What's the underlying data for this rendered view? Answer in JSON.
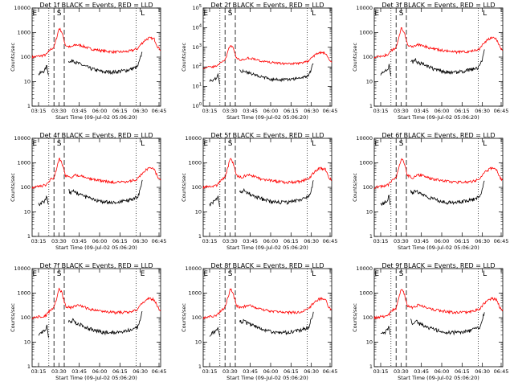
{
  "chart_data": {
    "type": "line",
    "x_tick_labels": [
      "03:15",
      "03:30",
      "03:45",
      "06:00",
      "06:15",
      "06:30",
      "06:45"
    ],
    "y_tick_labels_default": [
      "1",
      "10",
      "100",
      "1000",
      "10000"
    ],
    "y_tick_labels_exp": [
      "10^0",
      "10^1",
      "10^2",
      "10^3",
      "10^4",
      "10^5"
    ],
    "ylabel": "Counts/sec",
    "xlabel": "Start Time (09-Jul-02 05:06:20)",
    "y_scale": "log",
    "series_colors": {
      "events": "#000000",
      "lld": "#ff0000"
    },
    "panels": [
      {
        "title": "Det 1f BLACK = Events, RED = LLD",
        "markers": [
          "E",
          "S",
          "L"
        ],
        "exp": false
      },
      {
        "title": "Det 2f BLACK = Events, RED = LLD",
        "markers": [
          "E",
          "S",
          "L"
        ],
        "exp": true
      },
      {
        "title": "Det 3f BLACK = Events, RED = LLD",
        "markers": [
          "E",
          "S",
          "L"
        ],
        "exp": false
      },
      {
        "title": "Det 4f BLACK = Events, RED = LLD",
        "markers": [
          "E",
          "S",
          "L"
        ],
        "exp": false
      },
      {
        "title": "Det 5f BLACK = Events, RED = LLD",
        "markers": [
          "E",
          "S",
          "L"
        ],
        "exp": false
      },
      {
        "title": "Det 6f BLACK = Events, RED = LLD",
        "markers": [
          "E",
          "S",
          "L"
        ],
        "exp": false
      },
      {
        "title": "Det 7f BLACK = Events, RED = LLD",
        "markers": [
          "E",
          "S",
          "E"
        ],
        "exp": false
      },
      {
        "title": "Det 8f BLACK = Events, RED = LLD",
        "markers": [
          "E",
          "S",
          "L"
        ],
        "exp": false
      },
      {
        "title": "Det 9f BLACK = Events, RED = LLD",
        "markers": [
          "E",
          "S",
          "L"
        ],
        "exp": false
      }
    ],
    "red_profile": [
      [
        0,
        100
      ],
      [
        0.06,
        110
      ],
      [
        0.11,
        125
      ],
      [
        0.14,
        200
      ],
      [
        0.17,
        250
      ],
      [
        0.19,
        600
      ],
      [
        0.21,
        1500
      ],
      [
        0.23,
        1100
      ],
      [
        0.26,
        300
      ],
      [
        0.3,
        250
      ],
      [
        0.34,
        320
      ],
      [
        0.38,
        300
      ],
      [
        0.45,
        220
      ],
      [
        0.55,
        180
      ],
      [
        0.65,
        160
      ],
      [
        0.75,
        170
      ],
      [
        0.82,
        220
      ],
      [
        0.85,
        350
      ],
      [
        0.88,
        500
      ],
      [
        0.91,
        600
      ],
      [
        0.95,
        550
      ],
      [
        0.98,
        250
      ],
      [
        1,
        200
      ]
    ],
    "black_profile": [
      [
        0.05,
        20
      ],
      [
        0.08,
        25
      ],
      [
        0.1,
        30
      ],
      [
        0.115,
        45
      ],
      [
        0.13,
        15
      ],
      [
        0.14,
        null
      ],
      [
        0.27,
        null
      ],
      [
        0.28,
        80
      ],
      [
        0.3,
        60
      ],
      [
        0.32,
        80
      ],
      [
        0.34,
        60
      ],
      [
        0.38,
        50
      ],
      [
        0.45,
        35
      ],
      [
        0.55,
        25
      ],
      [
        0.65,
        25
      ],
      [
        0.75,
        30
      ],
      [
        0.82,
        40
      ],
      [
        0.84,
        80
      ],
      [
        0.86,
        200
      ],
      [
        0.88,
        null
      ]
    ]
  }
}
